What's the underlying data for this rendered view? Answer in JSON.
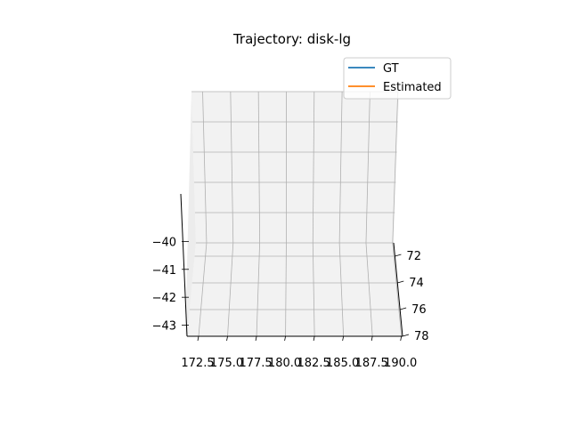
{
  "chart_data": {
    "type": "line",
    "projection": "3d",
    "title": "Trajectory: disk-lg",
    "xlabel": "",
    "ylabel": "",
    "zlabel": "",
    "x_ticks": [
      "172.5",
      "175.0",
      "177.5",
      "180.0",
      "182.5",
      "185.0",
      "187.5",
      "190.0"
    ],
    "y_ticks": [
      "72",
      "74",
      "76",
      "78"
    ],
    "z_ticks": [
      "−40",
      "−41",
      "−42",
      "−43"
    ],
    "xlim": [
      171.5,
      190.1
    ],
    "ylim": [
      71.0,
      78.0
    ],
    "zlim": [
      -43.3,
      -38.0
    ],
    "grid": true,
    "legend_position": "top-right",
    "series": [
      {
        "name": "GT",
        "color": "#1f77b4",
        "points": []
      },
      {
        "name": "Estimated",
        "color": "#ff7f0e",
        "points": []
      }
    ],
    "pane_color": "#f2f2f2",
    "grid_color": "#b0b0b0"
  }
}
